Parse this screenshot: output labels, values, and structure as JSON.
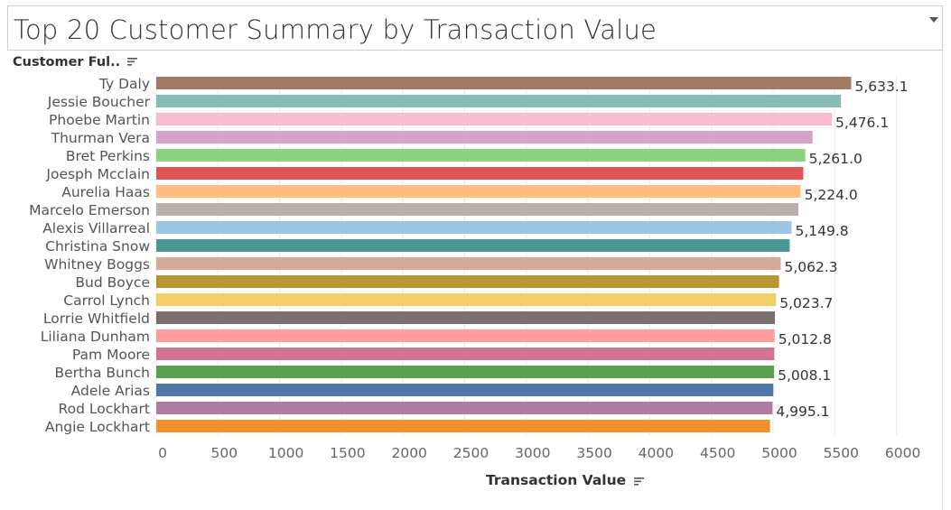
{
  "title": "Top 20 Customer Summary by Transaction Value",
  "dimension_header": "Customer Ful..",
  "x_axis_title": "Transaction Value",
  "icons": {
    "dropdown": "chevron-down-icon",
    "sort": "sort-descending-icon"
  },
  "chart_data": {
    "type": "bar",
    "orientation": "horizontal",
    "title": "Top 20 Customer Summary by Transaction Value",
    "xlabel": "Transaction Value",
    "ylabel": "Customer Ful..",
    "xlim": [
      0,
      6300
    ],
    "x_ticks": [
      "0",
      "500",
      "1000",
      "1500",
      "2000",
      "2500",
      "3000",
      "3500",
      "4000",
      "4500",
      "5000",
      "5500",
      "6000"
    ],
    "x_tick_values": [
      0,
      500,
      1000,
      1500,
      2000,
      2500,
      3000,
      3500,
      4000,
      4500,
      5000,
      5500,
      6000
    ],
    "grid": true,
    "categories": [
      "Ty Daly",
      "Jessie Boucher",
      "Phoebe Martin",
      "Thurman Vera",
      "Bret Perkins",
      "Joesph Mcclain",
      "Aurelia Haas",
      "Marcelo Emerson",
      "Alexis Villarreal",
      "Christina Snow",
      "Whitney Boggs",
      "Bud Boyce",
      "Carrol Lynch",
      "Lorrie Whitfield",
      "Liliana Dunham",
      "Pam Moore",
      "Bertha Bunch",
      "Adele Arias",
      "Rod Lockhart",
      "Angie Lockhart"
    ],
    "values": [
      5633.1,
      5550,
      5476.1,
      5320,
      5261.0,
      5245,
      5224.0,
      5205,
      5149.8,
      5135,
      5062.3,
      5048,
      5023.7,
      5015,
      5012.8,
      5010,
      5008.1,
      5002,
      4995.1,
      4975
    ],
    "data_labels": [
      "5,633.1",
      "",
      "5,476.1",
      "",
      "5,261.0",
      "",
      "5,224.0",
      "",
      "5,149.8",
      "",
      "5,062.3",
      "",
      "5,023.7",
      "",
      "5,012.8",
      "",
      "5,008.1",
      "",
      "4,995.1",
      ""
    ],
    "colors": [
      "#a07a62",
      "#86bcb6",
      "#f9bcd0",
      "#d6a2c7",
      "#8cd17d",
      "#e15759",
      "#ffbe7d",
      "#bab0ac",
      "#9dc5e3",
      "#499894",
      "#d4a99a",
      "#b8962e",
      "#f1ce63",
      "#79706e",
      "#ff9d9a",
      "#d37295",
      "#59a14f",
      "#4e79a7",
      "#b07aa1",
      "#f28e2b"
    ]
  }
}
